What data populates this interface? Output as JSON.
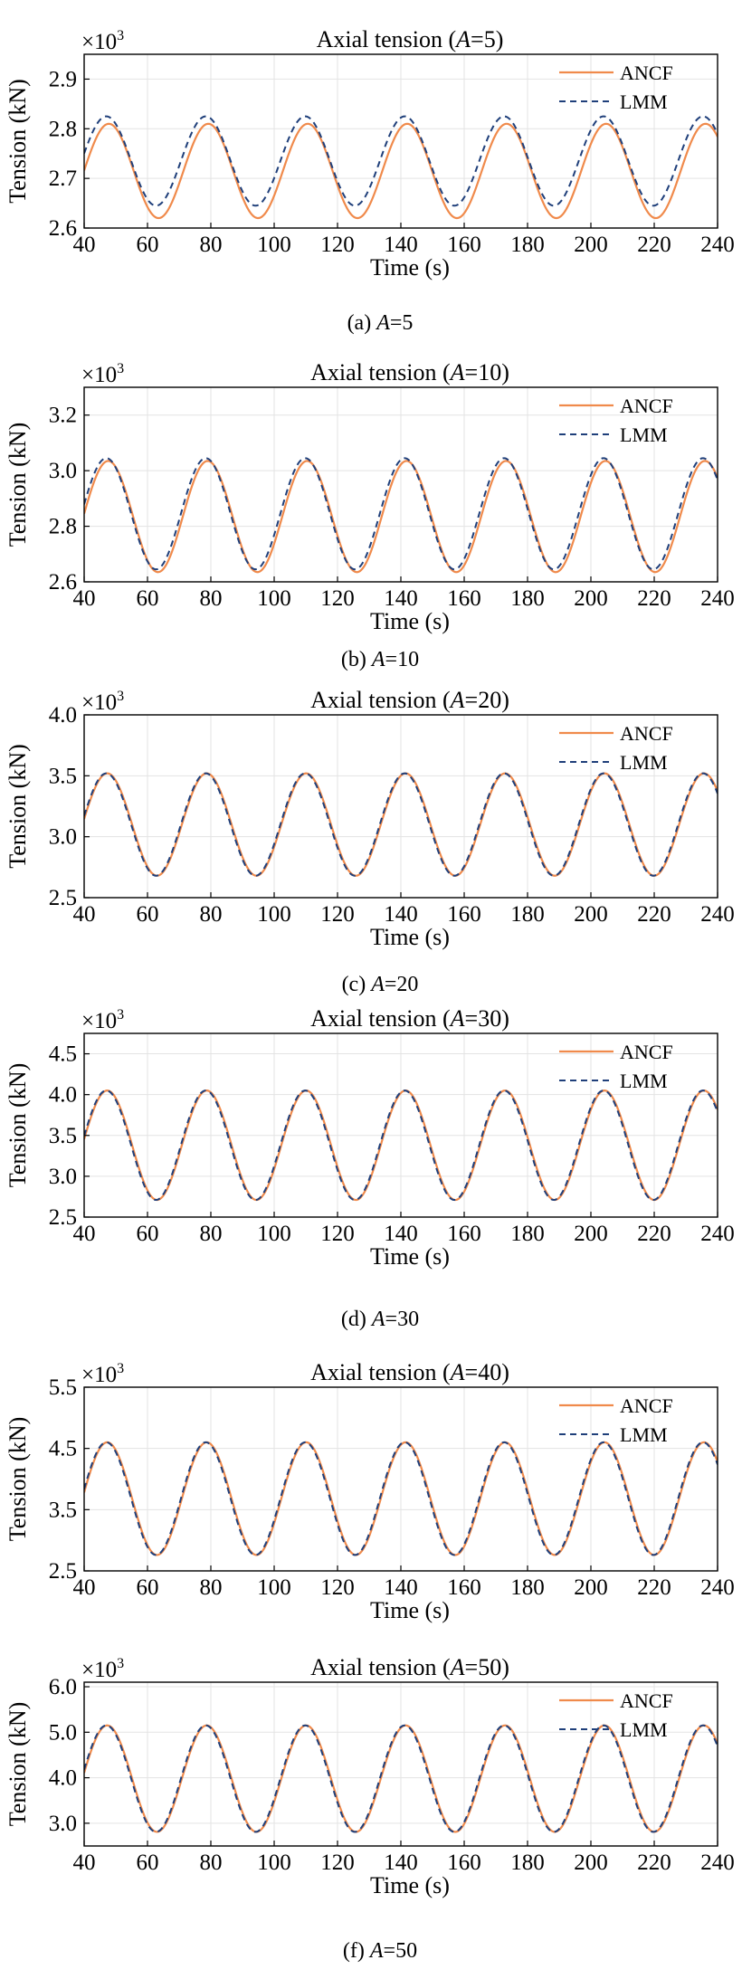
{
  "colors": {
    "ancf": "#F08A4B",
    "lmm": "#1F3F7A",
    "grid": "#E3E3E3",
    "axis": "#000000"
  },
  "chart_data": [
    {
      "type": "line",
      "title_prefix": "Axial tension (",
      "title_var": "A",
      "title_suffix": "=5)",
      "xlabel": "Time (s)",
      "ylabel": "Tension (kN)",
      "xlim": [
        40,
        240
      ],
      "ylim": [
        2.6,
        2.95
      ],
      "xticks": [
        40,
        60,
        80,
        100,
        120,
        140,
        160,
        180,
        200,
        220,
        240
      ],
      "xtick_labels": [
        "40",
        "60",
        "80",
        "100",
        "120",
        "140",
        "160",
        "180",
        "200",
        "220",
        "240"
      ],
      "yticks": [
        2.6,
        2.7,
        2.8,
        2.9
      ],
      "ytick_labels": [
        "2.6",
        "2.7",
        "2.8",
        "2.9"
      ],
      "yscale_base": "×10",
      "yscale_exp": "3",
      "period": 31.4,
      "peak_time": 47,
      "series": [
        {
          "name": "ANCF",
          "mean": 2.715,
          "amplitude": 0.095,
          "time_offset": 0.8,
          "style": "solid"
        },
        {
          "name": "LMM",
          "mean": 2.735,
          "amplitude": 0.09,
          "time_offset": 0,
          "style": "dashed"
        }
      ],
      "caption": {
        "prefix": "(a) ",
        "var": "A",
        "suffix": "=5"
      }
    },
    {
      "type": "line",
      "title_prefix": "Axial tension (",
      "title_var": "A",
      "title_suffix": "=10)",
      "xlabel": "Time (s)",
      "ylabel": "Tension (kN)",
      "xlim": [
        40,
        240
      ],
      "ylim": [
        2.6,
        3.3
      ],
      "xticks": [
        40,
        60,
        80,
        100,
        120,
        140,
        160,
        180,
        200,
        220,
        240
      ],
      "xtick_labels": [
        "40",
        "60",
        "80",
        "100",
        "120",
        "140",
        "160",
        "180",
        "200",
        "220",
        "240"
      ],
      "yticks": [
        2.6,
        2.8,
        3.0,
        3.2
      ],
      "ytick_labels": [
        "2.6",
        "2.8",
        "3.0",
        "3.2"
      ],
      "yscale_base": "×10",
      "yscale_exp": "3",
      "period": 31.4,
      "peak_time": 47,
      "series": [
        {
          "name": "ANCF",
          "mean": 2.835,
          "amplitude": 0.2,
          "time_offset": 0.6,
          "style": "solid"
        },
        {
          "name": "LMM",
          "mean": 2.845,
          "amplitude": 0.2,
          "time_offset": 0,
          "style": "dashed"
        }
      ],
      "caption": {
        "prefix": "(b) ",
        "var": "A",
        "suffix": "=10"
      }
    },
    {
      "type": "line",
      "title_prefix": "Axial tension (",
      "title_var": "A",
      "title_suffix": "=20)",
      "xlabel": "Time (s)",
      "ylabel": "Tension (kN)",
      "xlim": [
        40,
        240
      ],
      "ylim": [
        2.5,
        4.0
      ],
      "xticks": [
        40,
        60,
        80,
        100,
        120,
        140,
        160,
        180,
        200,
        220,
        240
      ],
      "xtick_labels": [
        "40",
        "60",
        "80",
        "100",
        "120",
        "140",
        "160",
        "180",
        "200",
        "220",
        "240"
      ],
      "yticks": [
        2.5,
        3.0,
        3.5,
        4.0
      ],
      "ytick_labels": [
        "2.5",
        "3.0",
        "3.5",
        "4.0"
      ],
      "yscale_base": "×10",
      "yscale_exp": "3",
      "period": 31.4,
      "peak_time": 47,
      "series": [
        {
          "name": "ANCF",
          "mean": 3.1,
          "amplitude": 0.42,
          "time_offset": 0.3,
          "style": "solid"
        },
        {
          "name": "LMM",
          "mean": 3.1,
          "amplitude": 0.42,
          "time_offset": 0,
          "style": "dashed"
        }
      ],
      "caption": {
        "prefix": "(c) ",
        "var": "A",
        "suffix": "=20"
      }
    },
    {
      "type": "line",
      "title_prefix": "Axial tension (",
      "title_var": "A",
      "title_suffix": "=30)",
      "xlabel": "Time (s)",
      "ylabel": "Tension (kN)",
      "xlim": [
        40,
        240
      ],
      "ylim": [
        2.5,
        4.75
      ],
      "xticks": [
        40,
        60,
        80,
        100,
        120,
        140,
        160,
        180,
        200,
        220,
        240
      ],
      "xtick_labels": [
        "40",
        "60",
        "80",
        "100",
        "120",
        "140",
        "160",
        "180",
        "200",
        "220",
        "240"
      ],
      "yticks": [
        2.5,
        3.0,
        3.5,
        4.0,
        4.5
      ],
      "ytick_labels": [
        "2.5",
        "3.0",
        "3.5",
        "4.0",
        "4.5"
      ],
      "yscale_base": "×10",
      "yscale_exp": "3",
      "period": 31.4,
      "peak_time": 47,
      "series": [
        {
          "name": "ANCF",
          "mean": 3.38,
          "amplitude": 0.67,
          "time_offset": 0.3,
          "style": "solid"
        },
        {
          "name": "LMM",
          "mean": 3.38,
          "amplitude": 0.67,
          "time_offset": 0,
          "style": "dashed"
        }
      ],
      "caption": {
        "prefix": "(d) ",
        "var": "A",
        "suffix": "=30"
      }
    },
    {
      "type": "line",
      "title_prefix": "Axial tension (",
      "title_var": "A",
      "title_suffix": "=40)",
      "xlabel": "Time (s)",
      "ylabel": "Tension (kN)",
      "xlim": [
        40,
        240
      ],
      "ylim": [
        2.5,
        5.5
      ],
      "xticks": [
        40,
        60,
        80,
        100,
        120,
        140,
        160,
        180,
        200,
        220,
        240
      ],
      "xtick_labels": [
        "40",
        "60",
        "80",
        "100",
        "120",
        "140",
        "160",
        "180",
        "200",
        "220",
        "240"
      ],
      "yticks": [
        2.5,
        3.5,
        4.5,
        5.5
      ],
      "ytick_labels": [
        "2.5",
        "3.5",
        "4.5",
        "5.5"
      ],
      "yscale_base": "×10",
      "yscale_exp": "3",
      "period": 31.4,
      "peak_time": 47,
      "series": [
        {
          "name": "ANCF",
          "mean": 3.68,
          "amplitude": 0.92,
          "time_offset": 0.3,
          "style": "solid"
        },
        {
          "name": "LMM",
          "mean": 3.68,
          "amplitude": 0.92,
          "time_offset": 0,
          "style": "dashed"
        }
      ],
      "caption": null
    },
    {
      "type": "line",
      "title_prefix": "Axial tension (",
      "title_var": "A",
      "title_suffix": "=50)",
      "xlabel": "Time (s)",
      "ylabel": "Tension (kN)",
      "xlim": [
        40,
        240
      ],
      "ylim": [
        2.5,
        6.1
      ],
      "xticks": [
        40,
        60,
        80,
        100,
        120,
        140,
        160,
        180,
        200,
        220,
        240
      ],
      "xtick_labels": [
        "40",
        "60",
        "80",
        "100",
        "120",
        "140",
        "160",
        "180",
        "200",
        "220",
        "240"
      ],
      "yticks": [
        3.0,
        4.0,
        5.0,
        6.0
      ],
      "ytick_labels": [
        "3.0",
        "4.0",
        "5.0",
        "6.0"
      ],
      "yscale_base": "×10",
      "yscale_exp": "3",
      "period": 31.4,
      "peak_time": 47,
      "series": [
        {
          "name": "ANCF",
          "mean": 3.98,
          "amplitude": 1.17,
          "time_offset": 0.3,
          "style": "solid"
        },
        {
          "name": "LMM",
          "mean": 3.98,
          "amplitude": 1.17,
          "time_offset": 0,
          "style": "dashed"
        }
      ],
      "caption": {
        "prefix": "(f) ",
        "var": "A",
        "suffix": "=50"
      }
    }
  ]
}
